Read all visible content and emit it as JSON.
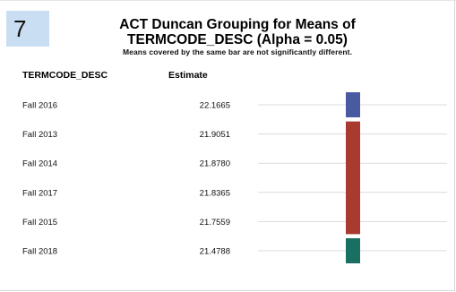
{
  "slide_number": "7",
  "chart_data": {
    "type": "table",
    "title": "ACT Duncan Grouping for Means of TERMCODE_DESC (Alpha = 0.05)",
    "title_lines": [
      "ACT Duncan Grouping for Means of",
      "TERMCODE_DESC (Alpha = 0.05)"
    ],
    "subtitle": "Means covered by the same bar are not significantly different.",
    "columns": [
      "TERMCODE_DESC",
      "Estimate"
    ],
    "rows": [
      {
        "term": "Fall 2016",
        "estimate": "22.1665"
      },
      {
        "term": "Fall 2013",
        "estimate": "21.9051"
      },
      {
        "term": "Fall 2014",
        "estimate": "21.8780"
      },
      {
        "term": "Fall 2017",
        "estimate": "21.8365"
      },
      {
        "term": "Fall 2015",
        "estimate": "21.7559"
      },
      {
        "term": "Fall 2018",
        "estimate": "21.4788"
      }
    ],
    "groups": [
      {
        "start_row": 0,
        "end_row": 0,
        "color": "#4a5aa0"
      },
      {
        "start_row": 1,
        "end_row": 4,
        "color": "#a83a30"
      },
      {
        "start_row": 5,
        "end_row": 5,
        "color": "#1a6f63"
      }
    ],
    "row_line_color": "#dcdcdc"
  }
}
